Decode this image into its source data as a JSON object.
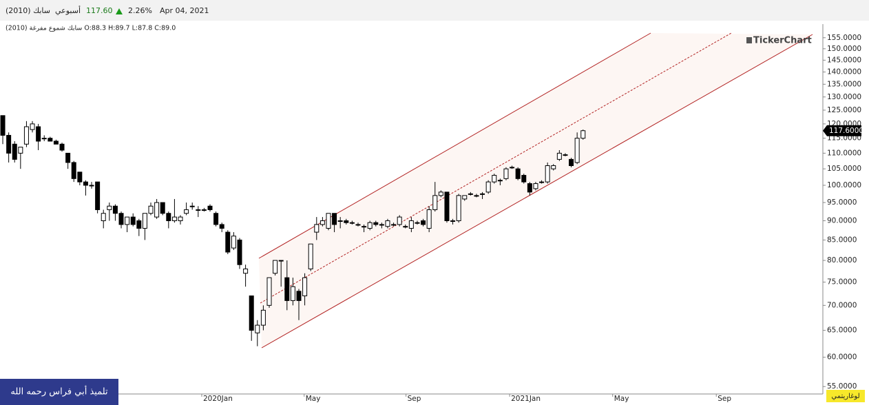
{
  "header": {
    "symbol": "سابك (2010)",
    "period": "أسبوعي",
    "price": "117.60",
    "change": "2.26%",
    "date": "Apr 04, 2021",
    "legend": "(2010) سابك شموع مفرغة O:88.3 H:89.7 L:87.8 C:89.0",
    "logo": "TickerChart",
    "banner": "تلميذ أبي فراس رحمه الله",
    "scale_button": "لوغاريتمي"
  },
  "chart_data": {
    "type": "candlestick",
    "log_scale": true,
    "grid": false,
    "up_color": "#ffffff",
    "down_color": "#000000",
    "channel_color": "#b22222",
    "categories": [
      null,
      null,
      null,
      null,
      null,
      null,
      null,
      null,
      null,
      null,
      null,
      null,
      null,
      null,
      null,
      null,
      null,
      null,
      null,
      null,
      null,
      null,
      null,
      null,
      null,
      null,
      null,
      null,
      null,
      null,
      null,
      null,
      null,
      null,
      null,
      null,
      null,
      null,
      null,
      null,
      null,
      null,
      null,
      null,
      null,
      null,
      null,
      null,
      null,
      null,
      null,
      null,
      null,
      null,
      null,
      null,
      null,
      null,
      null,
      null,
      null,
      null,
      null,
      null,
      null,
      null,
      null,
      null,
      null,
      null,
      null,
      null,
      null,
      null,
      null,
      null,
      null,
      null,
      null,
      null,
      null,
      null,
      null,
      null,
      null,
      null,
      null,
      null,
      null,
      null,
      null,
      null,
      null,
      null,
      null,
      null,
      null,
      null,
      null
    ],
    "open": [
      123,
      116,
      113,
      110,
      113,
      118,
      119,
      115,
      115,
      114,
      113,
      110,
      107,
      104,
      101,
      100,
      101,
      90,
      93,
      94,
      92,
      89,
      91,
      90,
      88,
      92,
      91,
      95,
      92,
      90,
      90,
      92,
      94,
      93,
      93,
      94,
      92,
      89,
      87,
      83,
      85,
      77,
      72,
      64.5,
      66,
      70,
      77,
      80,
      76,
      71,
      73,
      72,
      78,
      87,
      89,
      88,
      92,
      90,
      90,
      89.5,
      89,
      88.5,
      88,
      89.5,
      89,
      88.5,
      89,
      89,
      88.5,
      88,
      89.5,
      90,
      88,
      93,
      97,
      98,
      90,
      90,
      96,
      97.5,
      97,
      97.5,
      98,
      101,
      101.5,
      102,
      105.5,
      105,
      103,
      100.5,
      99,
      101,
      101,
      105,
      108,
      109.5,
      108,
      107,
      115
    ],
    "high": [
      123,
      117,
      114,
      112,
      121,
      121,
      120,
      116,
      115.5,
      114.5,
      113.5,
      110,
      107.5,
      104,
      101.5,
      101,
      101,
      93,
      95,
      94.5,
      92.5,
      91,
      92,
      90.5,
      92,
      95,
      96,
      95,
      92.5,
      96,
      91.5,
      95,
      95,
      94,
      93.5,
      94.5,
      92.5,
      89.5,
      87.5,
      87,
      85.5,
      79,
      72,
      67,
      70,
      76,
      80,
      80,
      80,
      76,
      73.5,
      77,
      84,
      91,
      91,
      92,
      92,
      91,
      90.5,
      90,
      89.5,
      89,
      90,
      90,
      89.5,
      90.5,
      89.5,
      91.5,
      89,
      91,
      90,
      90.5,
      94,
      101,
      98.5,
      98,
      90.5,
      97.5,
      97,
      98,
      97.5,
      98,
      101.5,
      103.5,
      102,
      105.5,
      106,
      105.5,
      103.5,
      101,
      101,
      101.5,
      107,
      106.5,
      111,
      110,
      108.5,
      117,
      118
    ],
    "low": [
      113,
      107,
      107,
      105,
      112,
      117,
      111,
      114,
      114,
      113,
      110.5,
      105,
      101,
      100,
      97,
      99,
      92,
      88,
      90,
      90,
      88,
      87,
      88.5,
      86,
      85,
      91.5,
      90.5,
      91.5,
      88,
      89.5,
      89,
      91.5,
      93,
      91,
      92.5,
      92.5,
      88.5,
      87,
      81.5,
      82.5,
      78,
      74,
      63,
      62,
      65,
      69.5,
      76.5,
      74,
      69,
      70,
      67,
      70,
      77.5,
      85,
      88.5,
      87.5,
      87,
      88,
      89,
      89,
      88.5,
      87,
      87.5,
      88.5,
      88,
      88,
      88.5,
      88.5,
      88,
      87,
      89,
      88.5,
      87,
      92.5,
      96.5,
      89.5,
      89,
      89.5,
      95.5,
      97,
      96.5,
      96,
      97.5,
      100.5,
      100,
      101.5,
      105,
      101.5,
      100.5,
      97,
      98.5,
      100.5,
      100.5,
      104.5,
      107.5,
      109,
      105.5,
      106.5,
      114.5
    ],
    "close": [
      116,
      110,
      108,
      112,
      119,
      120,
      114,
      115,
      114,
      113,
      111,
      107,
      102,
      101,
      100,
      100,
      93,
      92,
      94,
      92,
      89,
      91,
      89,
      88,
      92,
      94,
      95,
      92,
      90,
      91,
      91,
      93,
      94,
      93,
      93,
      93,
      89,
      88,
      82,
      86,
      79,
      78,
      65,
      66,
      69,
      76,
      80,
      80,
      71,
      74,
      71,
      76,
      84,
      89,
      90,
      92,
      89,
      90,
      89.5,
      89.5,
      89,
      88.5,
      89.5,
      89,
      89,
      90,
      89,
      91,
      88.5,
      90,
      89.5,
      89,
      93,
      97,
      98,
      90,
      90,
      97,
      97,
      97.5,
      97,
      97.5,
      101,
      103,
      101.5,
      105,
      105.5,
      102,
      101,
      98,
      100.5,
      101,
      106,
      106,
      110,
      109.5,
      106,
      115,
      117.6
    ],
    "last_price": {
      "value": 117.6,
      "label": "117.6000"
    },
    "ylim": [
      53.8,
      161.4
    ],
    "yticks": [
      {
        "value": 55,
        "label": "55.0000"
      },
      {
        "value": 60,
        "label": "60.0000"
      },
      {
        "value": 65,
        "label": "65.0000"
      },
      {
        "value": 70,
        "label": "70.0000"
      },
      {
        "value": 75,
        "label": "75.0000"
      },
      {
        "value": 80,
        "label": "80.0000"
      },
      {
        "value": 85,
        "label": "85.0000"
      },
      {
        "value": 90,
        "label": "90.0000"
      },
      {
        "value": 95,
        "label": "95.0000"
      },
      {
        "value": 100,
        "label": "100.0000"
      },
      {
        "value": 105,
        "label": "105.0000"
      },
      {
        "value": 110,
        "label": "110.0000"
      },
      {
        "value": 115,
        "label": "115.0000"
      },
      {
        "value": 120,
        "label": "120.0000"
      },
      {
        "value": 125,
        "label": "125.0000"
      },
      {
        "value": 130,
        "label": "130.0000"
      },
      {
        "value": 135,
        "label": "135.0000"
      },
      {
        "value": 140,
        "label": "140.0000"
      },
      {
        "value": 145,
        "label": "145.0000"
      },
      {
        "value": 150,
        "label": "150.0000"
      },
      {
        "value": 155,
        "label": "155.0000"
      }
    ],
    "xlim": [
      -0.47,
      138.5
    ],
    "xticks": [
      {
        "value": 33.6,
        "label": "2020Jan"
      },
      {
        "value": 50.9,
        "label": "May"
      },
      {
        "value": 68.1,
        "label": "Sep"
      },
      {
        "value": 85.6,
        "label": "2021Jan"
      },
      {
        "value": 103,
        "label": "May"
      },
      {
        "value": 120.5,
        "label": "Sep"
      }
    ]
  }
}
